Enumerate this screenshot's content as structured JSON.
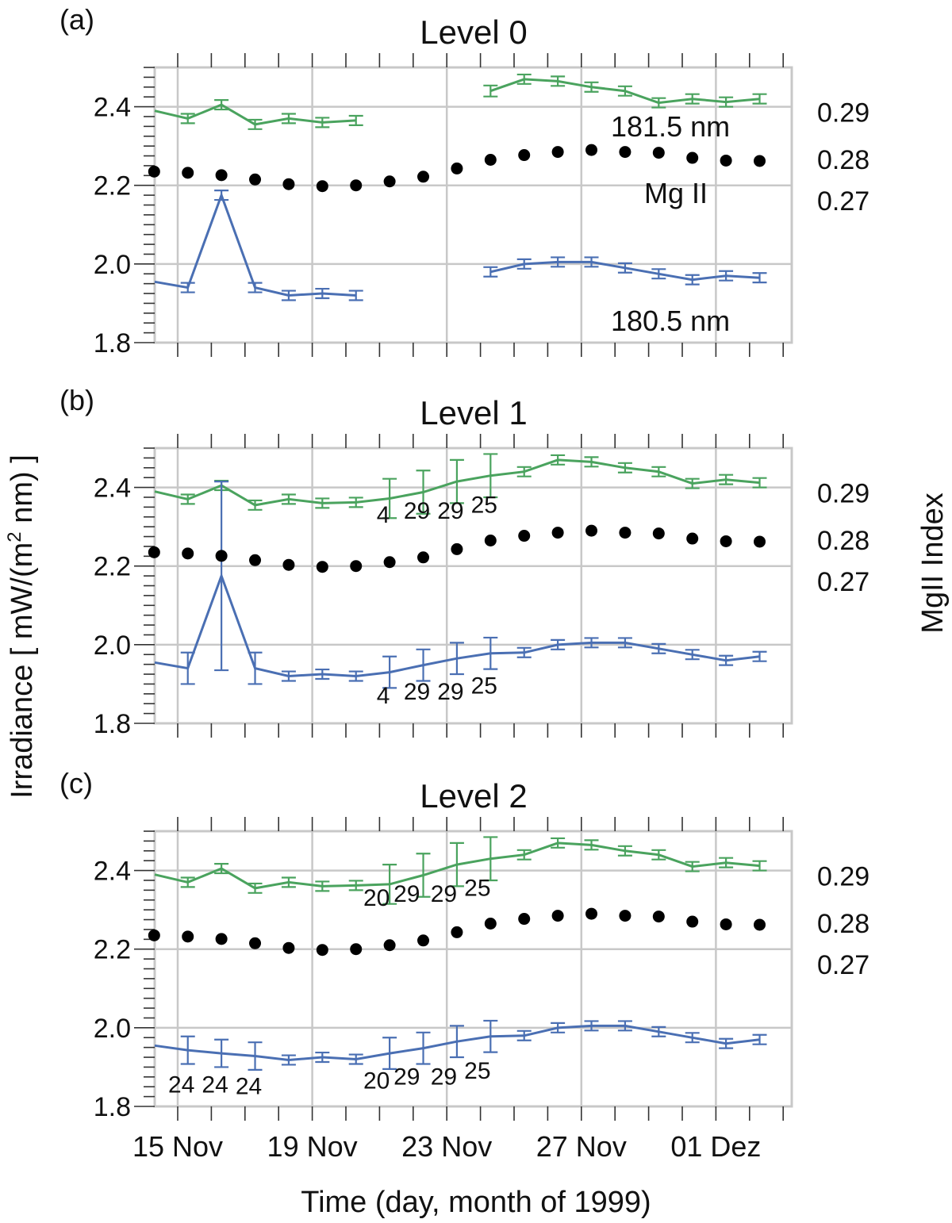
{
  "xlabel": "Time (day, month of 1999)",
  "ylabel": "Irradiance [ mW/(m² nm) ]",
  "ylabel_main": "Irradiance [ mW/(m",
  "ylabel_sup": "2",
  "ylabel_tail": " nm) ]",
  "y2label": "MgII Index",
  "x_tick_labels": [
    "15 Nov",
    "19 Nov",
    "23 Nov",
    "27 Nov",
    "01 Dez"
  ],
  "colors": {
    "green": "#4aa35e",
    "blue": "#4a6fb3",
    "black": "#000000",
    "grid": "#c8c8c8"
  },
  "chart_data": [
    {
      "type": "line",
      "panel_label": "(a)",
      "title": "Level 0",
      "x_unit": "day index (15 Nov = 0)",
      "ylim": [
        1.8,
        2.5
      ],
      "y_ticks": [
        1.8,
        2.0,
        2.2,
        2.4
      ],
      "right_ticks": [
        "0.29",
        "0.28",
        "0.27"
      ],
      "annotations": {
        "green": "181.5 nm",
        "blue": "180.5 nm",
        "mg": "Mg II"
      },
      "series": [
        {
          "name": "181.5 nm",
          "color": "green",
          "x": [
            -0.7,
            0.3,
            1.3,
            2.3,
            3.3,
            4.3,
            5.3,
            null,
            9.3,
            10.3,
            11.3,
            12.3,
            13.3,
            14.3,
            15.3,
            16.3,
            17.3
          ],
          "y": [
            2.39,
            2.37,
            2.405,
            2.355,
            2.37,
            2.36,
            2.365,
            null,
            2.44,
            2.47,
            2.465,
            2.45,
            2.44,
            2.41,
            2.42,
            2.412,
            2.42
          ],
          "err": [
            0.012,
            0.012,
            0.012,
            0.012,
            0.012,
            0.012,
            0.012,
            null,
            0.014,
            0.012,
            0.012,
            0.012,
            0.012,
            0.012,
            0.012,
            0.012,
            0.012
          ]
        },
        {
          "name": "180.5 nm",
          "color": "blue",
          "x": [
            -0.7,
            0.3,
            1.3,
            2.3,
            3.3,
            4.3,
            5.3,
            null,
            9.3,
            10.3,
            11.3,
            12.3,
            13.3,
            14.3,
            15.3,
            16.3,
            17.3
          ],
          "y": [
            1.955,
            1.94,
            2.175,
            1.94,
            1.92,
            1.925,
            1.92,
            null,
            1.98,
            2.0,
            2.005,
            2.005,
            1.99,
            1.975,
            1.96,
            1.97,
            1.965
          ],
          "err": [
            0.012,
            0.012,
            0.012,
            0.012,
            0.012,
            0.012,
            0.012,
            null,
            0.012,
            0.012,
            0.012,
            0.012,
            0.012,
            0.012,
            0.012,
            0.012,
            0.012
          ]
        },
        {
          "name": "Mg II",
          "color": "black",
          "x": [
            -0.7,
            0.3,
            1.3,
            2.3,
            3.3,
            4.3,
            5.3,
            6.3,
            7.3,
            8.3,
            9.3,
            10.3,
            11.3,
            12.3,
            13.3,
            14.3,
            15.3,
            16.3,
            17.3
          ],
          "y": [
            2.235,
            2.232,
            2.226,
            2.215,
            2.203,
            2.198,
            2.2,
            2.21,
            2.222,
            2.243,
            2.265,
            2.277,
            2.285,
            2.29,
            2.285,
            2.283,
            2.27,
            2.263,
            2.262
          ]
        }
      ],
      "counts": []
    },
    {
      "type": "line",
      "panel_label": "(b)",
      "title": "Level 1",
      "x_unit": "day index (15 Nov = 0)",
      "ylim": [
        1.8,
        2.5
      ],
      "y_ticks": [
        1.8,
        2.0,
        2.2,
        2.4
      ],
      "right_ticks": [
        "0.29",
        "0.28",
        "0.27"
      ],
      "series": [
        {
          "name": "181.5 nm",
          "color": "green",
          "x": [
            -0.7,
            0.3,
            1.3,
            2.3,
            3.3,
            4.3,
            5.3,
            6.3,
            7.3,
            8.3,
            9.3,
            10.3,
            11.3,
            12.3,
            13.3,
            14.3,
            15.3,
            16.3,
            17.3
          ],
          "y": [
            2.39,
            2.37,
            2.405,
            2.355,
            2.37,
            2.36,
            2.362,
            2.372,
            2.388,
            2.415,
            2.43,
            2.44,
            2.47,
            2.465,
            2.45,
            2.44,
            2.41,
            2.42,
            2.412
          ],
          "err": [
            0.012,
            0.012,
            0.012,
            0.012,
            0.012,
            0.012,
            0.012,
            0.05,
            0.055,
            0.055,
            0.055,
            0.012,
            0.012,
            0.012,
            0.012,
            0.012,
            0.012,
            0.012,
            0.012
          ]
        },
        {
          "name": "180.5 nm",
          "color": "blue",
          "x": [
            -0.7,
            0.3,
            1.3,
            2.3,
            3.3,
            4.3,
            5.3,
            6.3,
            7.3,
            8.3,
            9.3,
            10.3,
            11.3,
            12.3,
            13.3,
            14.3,
            15.3,
            16.3,
            17.3
          ],
          "y": [
            1.955,
            1.94,
            2.175,
            1.94,
            1.92,
            1.925,
            1.92,
            1.93,
            1.948,
            1.965,
            1.978,
            1.98,
            2.0,
            2.005,
            2.005,
            1.99,
            1.975,
            1.96,
            1.97
          ],
          "err": [
            0.012,
            0.04,
            0.24,
            0.04,
            0.012,
            0.012,
            0.012,
            0.04,
            0.04,
            0.04,
            0.04,
            0.012,
            0.012,
            0.012,
            0.012,
            0.012,
            0.012,
            0.012,
            0.012
          ]
        },
        {
          "name": "Mg II",
          "color": "black",
          "x": [
            -0.7,
            0.3,
            1.3,
            2.3,
            3.3,
            4.3,
            5.3,
            6.3,
            7.3,
            8.3,
            9.3,
            10.3,
            11.3,
            12.3,
            13.3,
            14.3,
            15.3,
            16.3,
            17.3
          ],
          "y": [
            2.235,
            2.232,
            2.226,
            2.215,
            2.203,
            2.198,
            2.2,
            2.21,
            2.222,
            2.243,
            2.265,
            2.277,
            2.285,
            2.29,
            2.285,
            2.283,
            2.27,
            2.263,
            2.262
          ]
        }
      ],
      "counts": [
        {
          "text": "4",
          "x": 6.3,
          "y": 2.335,
          "sup": false
        },
        {
          "text": "29",
          "x": 7.3,
          "y": 2.345,
          "sup": false
        },
        {
          "text": "29",
          "x": 8.3,
          "y": 2.345,
          "sup": false
        },
        {
          "text": "25",
          "x": 9.3,
          "y": 2.36,
          "sup": false
        },
        {
          "text": "4",
          "x": 6.3,
          "y": 1.875,
          "sup": false
        },
        {
          "text": "29",
          "x": 7.3,
          "y": 1.885,
          "sup": false
        },
        {
          "text": "29",
          "x": 8.3,
          "y": 1.885,
          "sup": false
        },
        {
          "text": "25",
          "x": 9.3,
          "y": 1.9,
          "sup": false
        }
      ]
    },
    {
      "type": "line",
      "panel_label": "(c)",
      "title": "Level 2",
      "x_unit": "day index (15 Nov = 0)",
      "ylim": [
        1.8,
        2.5
      ],
      "y_ticks": [
        1.8,
        2.0,
        2.2,
        2.4
      ],
      "right_ticks": [
        "0.29",
        "0.28",
        "0.27"
      ],
      "series": [
        {
          "name": "181.5 nm",
          "color": "green",
          "x": [
            -0.7,
            0.3,
            1.3,
            2.3,
            3.3,
            4.3,
            5.3,
            6.3,
            7.3,
            8.3,
            9.3,
            10.3,
            11.3,
            12.3,
            13.3,
            14.3,
            15.3,
            16.3,
            17.3
          ],
          "y": [
            2.39,
            2.37,
            2.405,
            2.355,
            2.37,
            2.36,
            2.362,
            2.365,
            2.388,
            2.415,
            2.43,
            2.44,
            2.47,
            2.465,
            2.45,
            2.44,
            2.41,
            2.42,
            2.412
          ],
          "err": [
            0.012,
            0.012,
            0.012,
            0.012,
            0.012,
            0.012,
            0.012,
            0.05,
            0.055,
            0.055,
            0.055,
            0.012,
            0.012,
            0.012,
            0.012,
            0.012,
            0.012,
            0.012,
            0.012
          ]
        },
        {
          "name": "180.5 nm",
          "color": "blue",
          "x": [
            -0.7,
            0.3,
            1.3,
            2.3,
            3.3,
            4.3,
            5.3,
            6.3,
            7.3,
            8.3,
            9.3,
            10.3,
            11.3,
            12.3,
            13.3,
            14.3,
            15.3,
            16.3,
            17.3
          ],
          "y": [
            1.955,
            1.943,
            1.935,
            1.928,
            1.918,
            1.925,
            1.92,
            1.935,
            1.948,
            1.965,
            1.978,
            1.98,
            2.0,
            2.005,
            2.005,
            1.99,
            1.975,
            1.96,
            1.97
          ],
          "err": [
            0.012,
            0.035,
            0.035,
            0.035,
            0.012,
            0.012,
            0.012,
            0.04,
            0.04,
            0.04,
            0.04,
            0.012,
            0.012,
            0.012,
            0.012,
            0.012,
            0.012,
            0.012,
            0.012
          ]
        },
        {
          "name": "Mg II",
          "color": "black",
          "x": [
            -0.7,
            0.3,
            1.3,
            2.3,
            3.3,
            4.3,
            5.3,
            6.3,
            7.3,
            8.3,
            9.3,
            10.3,
            11.3,
            12.3,
            13.3,
            14.3,
            15.3,
            16.3,
            17.3
          ],
          "y": [
            2.235,
            2.232,
            2.226,
            2.215,
            2.203,
            2.198,
            2.2,
            2.21,
            2.222,
            2.243,
            2.265,
            2.277,
            2.285,
            2.29,
            2.285,
            2.283,
            2.27,
            2.263,
            2.262
          ]
        }
      ],
      "counts": [
        {
          "text": "20",
          "x": 6.1,
          "y": 2.335,
          "sup": false
        },
        {
          "text": "29",
          "x": 7.0,
          "y": 2.345,
          "sup": false
        },
        {
          "text": "29",
          "x": 8.1,
          "y": 2.345,
          "sup": false
        },
        {
          "text": "25",
          "x": 9.1,
          "y": 2.36,
          "sup": false
        },
        {
          "text": "24",
          "x": 0.3,
          "y": 1.86,
          "sup": false
        },
        {
          "text": "24",
          "x": 1.3,
          "y": 1.86,
          "sup": false
        },
        {
          "text": "24",
          "x": 2.3,
          "y": 1.855,
          "sup": false
        },
        {
          "text": "20",
          "x": 6.1,
          "y": 1.87,
          "sup": false
        },
        {
          "text": "29",
          "x": 7.0,
          "y": 1.88,
          "sup": false
        },
        {
          "text": "29",
          "x": 8.1,
          "y": 1.88,
          "sup": false
        },
        {
          "text": "25",
          "x": 9.1,
          "y": 1.895,
          "sup": false
        }
      ]
    }
  ]
}
